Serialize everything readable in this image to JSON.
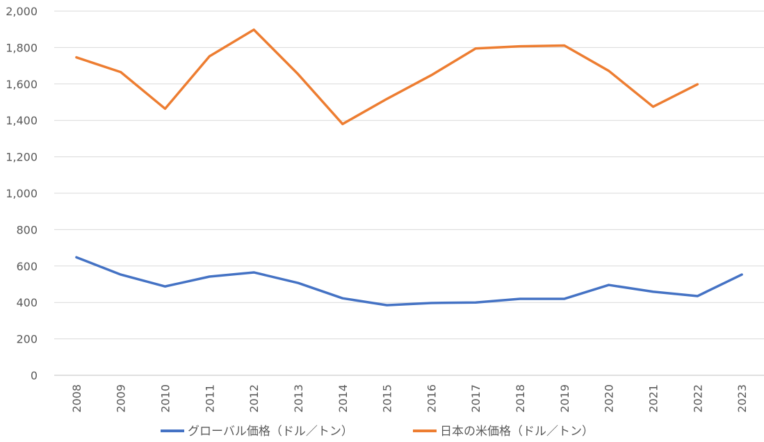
{
  "chart_data": {
    "type": "line",
    "title": "",
    "xlabel": "",
    "ylabel": "",
    "ylim": [
      0,
      2000
    ],
    "y_ticks": [
      "0",
      "200",
      "400",
      "600",
      "800",
      "1,000",
      "1,200",
      "1,400",
      "1,600",
      "1,800",
      "2,000"
    ],
    "y_tick_values": [
      0,
      200,
      400,
      600,
      800,
      1000,
      1200,
      1400,
      1600,
      1800,
      2000
    ],
    "grid": true,
    "legend_position": "bottom",
    "categories": [
      "2008",
      "2009",
      "2010",
      "2011",
      "2012",
      "2013",
      "2014",
      "2015",
      "2016",
      "2017",
      "2018",
      "2019",
      "2020",
      "2021",
      "2022",
      "2023"
    ],
    "series": [
      {
        "name": "グローバル価格（ドル／トン）",
        "color": "#4472c4",
        "values": [
          648,
          553,
          488,
          542,
          565,
          507,
          423,
          385,
          397,
          400,
          420,
          420,
          496,
          459,
          435,
          553
        ]
      },
      {
        "name": "日本の米価格（ドル／トン）",
        "color": "#ed7d31",
        "values": [
          1746,
          1665,
          1464,
          1752,
          1898,
          1653,
          1380,
          1518,
          1648,
          1795,
          1807,
          1811,
          1672,
          1475,
          1598,
          null
        ]
      }
    ]
  }
}
